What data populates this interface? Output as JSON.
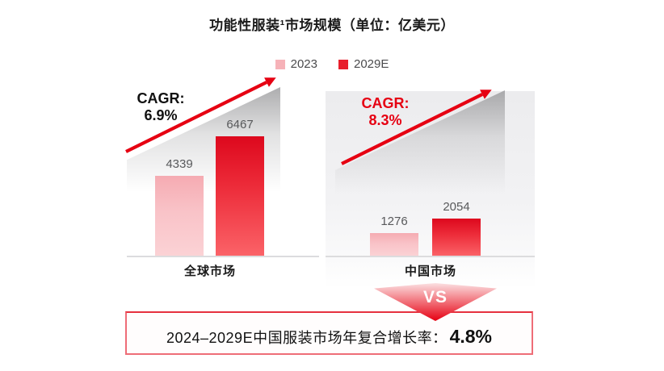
{
  "title": "功能性服装¹市场规模（单位：亿美元）",
  "legend": {
    "items": [
      {
        "label": "2023",
        "color": "#f6b2b8"
      },
      {
        "label": "2029E",
        "color": "#e81f2c"
      }
    ]
  },
  "colors": {
    "accent_red": "#e60012",
    "bar_pink_top": "#f5abb2",
    "bar_red_top": "#dd081d",
    "value_text": "#58595b"
  },
  "chart_data": [
    {
      "type": "bar",
      "market": "全球市场",
      "categories": [
        "2023",
        "2029E"
      ],
      "values": [
        4339,
        6467
      ],
      "cagr": {
        "label": "CAGR:",
        "value": "6.9%"
      },
      "unit": "亿美元",
      "legend_position": "top",
      "grid": false
    },
    {
      "type": "bar",
      "market": "中国市场",
      "categories": [
        "2023",
        "2029E"
      ],
      "values": [
        1276,
        2054
      ],
      "cagr": {
        "label": "CAGR:",
        "value": "8.3%"
      },
      "unit": "亿美元",
      "legend_position": "top",
      "grid": false
    }
  ],
  "vs_label": "VS",
  "banner": {
    "text": "2024–2029E中国服装市场年复合增长率：",
    "value": "4.8%"
  }
}
